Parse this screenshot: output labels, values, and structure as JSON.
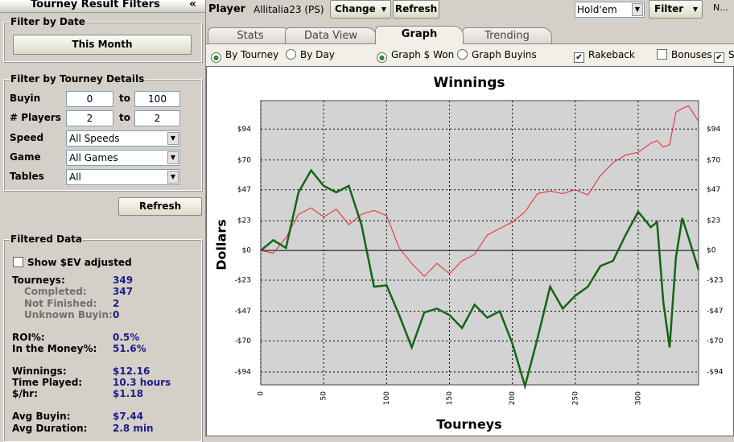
{
  "sidebar": {
    "title": "Tourney Result Filters",
    "collapse": "«",
    "date_filter": {
      "title": "Filter by Date",
      "button": "This Month"
    },
    "details": {
      "title": "Filter by Tourney Details",
      "ranges": [
        {
          "label": "Buyin",
          "from": "0",
          "to_label": "to",
          "to": "100"
        },
        {
          "label": "# Players",
          "from": "2",
          "to_label": "to",
          "to": "2"
        }
      ],
      "selects": [
        {
          "label": "Speed",
          "value": "All Speeds"
        },
        {
          "label": "Game",
          "value": "All Games"
        },
        {
          "label": "Tables",
          "value": "All"
        }
      ]
    },
    "refresh": "Refresh",
    "filtered": {
      "title": "Filtered Data",
      "ev_checkbox": {
        "label": "Show $EV adjusted",
        "checked": false
      },
      "groups": [
        [
          {
            "label": "Tourneys:",
            "value": "349",
            "details": [
              {
                "label": "Completed:",
                "value": "347"
              },
              {
                "label": "Not Finished:",
                "value": "2"
              },
              {
                "label": "Unknown Buyin:",
                "value": "0"
              }
            ]
          }
        ],
        [
          {
            "label": "ROI%:",
            "value": "0.5%"
          },
          {
            "label": "In the Money%:",
            "value": "51.6%"
          }
        ],
        [
          {
            "label": "Winnings:",
            "value": "$12.16"
          },
          {
            "label": "Time Played:",
            "value": "10.3 hours"
          },
          {
            "label": "$/hr:",
            "value": "$1.18"
          }
        ],
        [
          {
            "label": "Avg Buyin:",
            "value": "$7.44"
          },
          {
            "label": "Avg Duration:",
            "value": "2.8 min"
          }
        ]
      ]
    }
  },
  "toolbar": {
    "player_label": "Player",
    "player": "Allitalia23 (PS)",
    "change": "Change",
    "refresh": "Refresh",
    "game": "Hold'em",
    "filter": "Filter",
    "more": "N..."
  },
  "tabs": {
    "items": [
      "Stats",
      "Data View",
      "Graph",
      "Trending"
    ],
    "active": 2
  },
  "options": [
    {
      "kind": "radio",
      "label": "By Tourney",
      "checked": true
    },
    {
      "kind": "radio",
      "label": "By Day",
      "checked": false
    },
    {
      "kind": "radio",
      "label": "Graph $ Won",
      "checked": true
    },
    {
      "kind": "radio",
      "label": "Graph Buyins",
      "checked": false
    },
    {
      "kind": "check",
      "label": "Rakeback",
      "checked": true
    },
    {
      "kind": "check",
      "label": "Bonuses",
      "checked": false
    },
    {
      "kind": "check",
      "label": "S",
      "checked": true
    }
  ],
  "chart": {
    "type": "line",
    "title": "Winnings",
    "x_label": "Tourneys",
    "y_label": "Dollars",
    "grid": true,
    "x": [
      0,
      10,
      20,
      30,
      40,
      50,
      60,
      70,
      80,
      90,
      100,
      110,
      120,
      130,
      140,
      150,
      160,
      170,
      180,
      190,
      200,
      210,
      220,
      230,
      240,
      250,
      260,
      270,
      280,
      290,
      300,
      310,
      315,
      320,
      325,
      330,
      335,
      340,
      348
    ],
    "series": [
      {
        "name": "Rakeback",
        "color": "#e8262a",
        "values": [
          0,
          -2,
          10,
          28,
          33,
          26,
          32,
          20,
          28,
          31,
          27,
          2,
          -10,
          -20,
          -10,
          -18,
          -8,
          -3,
          12,
          17,
          22,
          30,
          44,
          46,
          44,
          47,
          43,
          58,
          68,
          74,
          76,
          83,
          85,
          80,
          82,
          107,
          110,
          112,
          100
        ]
      },
      {
        "name": "Won",
        "color": "#146414",
        "values": [
          0,
          8,
          2,
          45,
          62,
          50,
          45,
          50,
          20,
          -28,
          -27,
          -50,
          -75,
          -48,
          -45,
          -50,
          -60,
          -42,
          -52,
          -47,
          -72,
          -105,
          -68,
          -28,
          -45,
          -35,
          -28,
          -12,
          -8,
          12,
          30,
          18,
          22,
          -40,
          -75,
          -5,
          25,
          10,
          -15
        ]
      }
    ],
    "xlim": [
      0,
      348
    ],
    "ylim": [
      -104,
      116
    ],
    "xticks": [
      0,
      50,
      100,
      150,
      200,
      250,
      300
    ],
    "yticks": [
      {
        "value": -94,
        "label": "-$94"
      },
      {
        "value": -70,
        "label": "-$70"
      },
      {
        "value": -47,
        "label": "-$47"
      },
      {
        "value": -23,
        "label": "-$23"
      },
      {
        "value": 0,
        "label": "$0"
      },
      {
        "value": 23,
        "label": "$23"
      },
      {
        "value": 47,
        "label": "$47"
      },
      {
        "value": 70,
        "label": "$70"
      },
      {
        "value": 94,
        "label": "$94"
      }
    ]
  }
}
